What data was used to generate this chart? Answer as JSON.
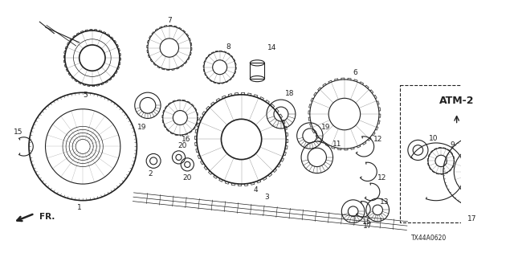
{
  "bg_color": "#ffffff",
  "line_color": "#222222",
  "atm2_label": "ATM-2",
  "part_code": "TX44A0620",
  "fr_label": "FR.",
  "figsize": [
    6.4,
    3.2
  ],
  "dpi": 100
}
